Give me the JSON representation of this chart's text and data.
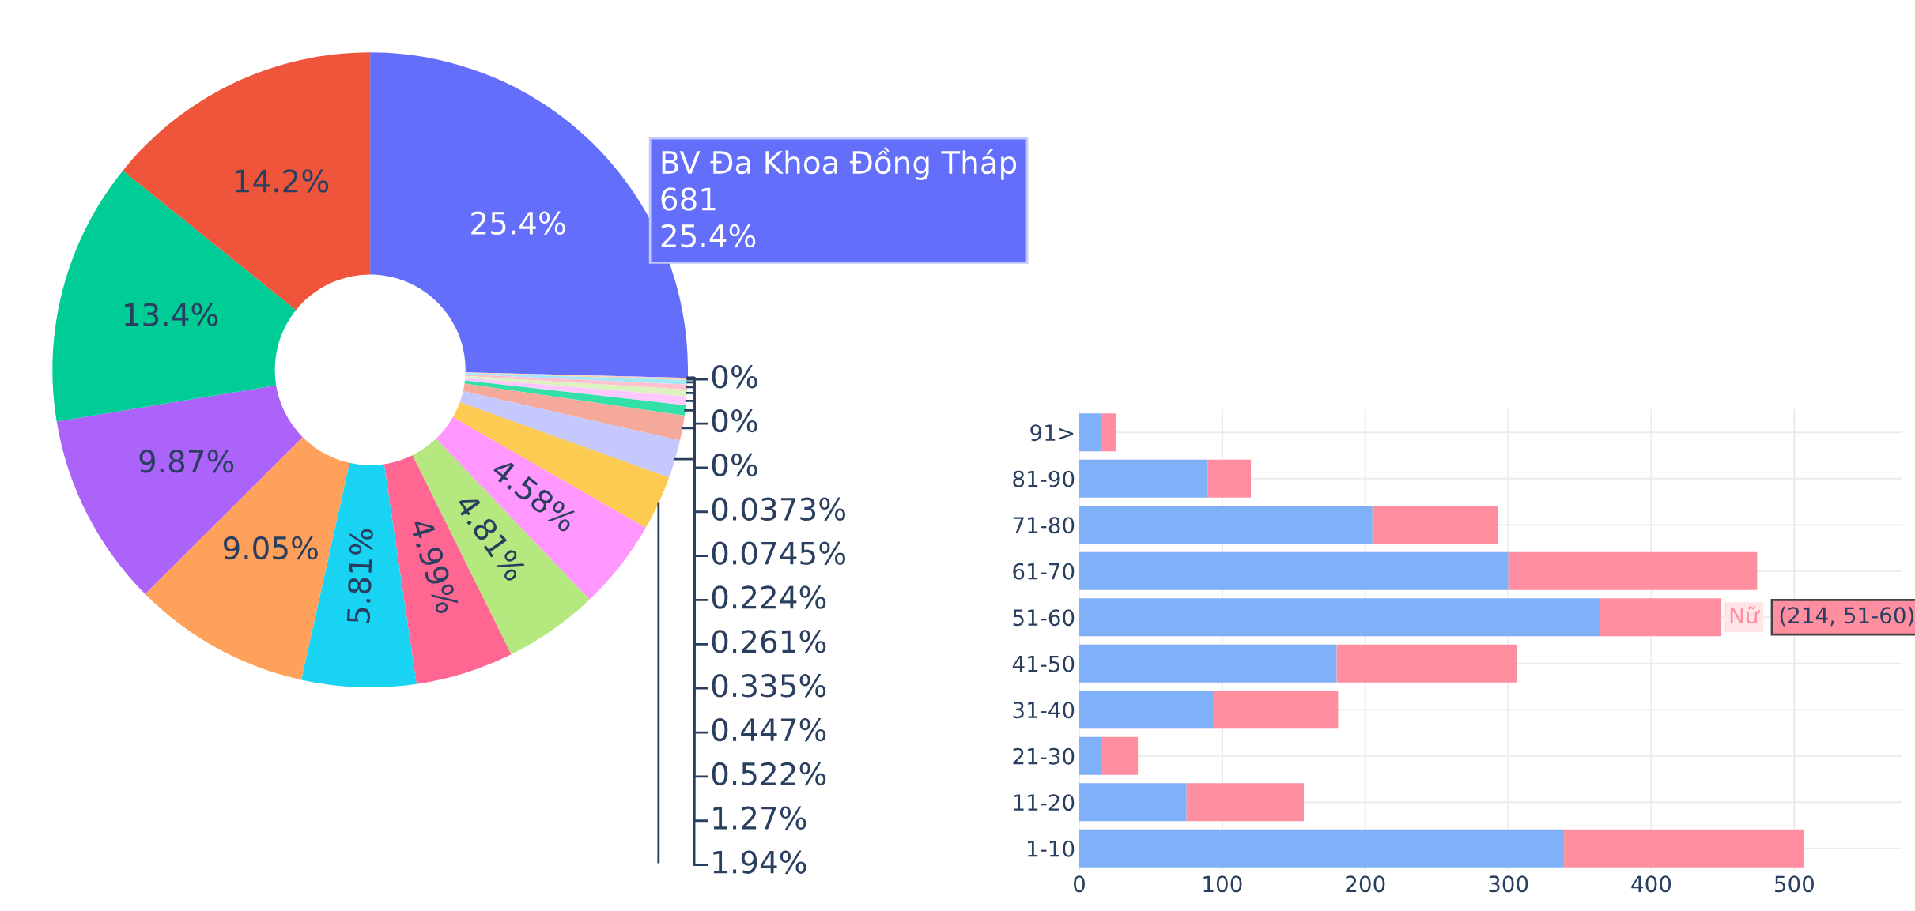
{
  "chart_data": [
    {
      "type": "donut",
      "categories": [
        "BV Đa Khoa Đồng Tháp",
        null,
        null,
        null,
        null,
        null,
        null,
        null,
        null,
        null,
        null,
        null,
        null,
        null,
        null,
        null,
        null,
        null,
        null,
        null,
        null,
        null
      ],
      "values": [
        25.4,
        0,
        0,
        0,
        0.0373,
        0.0745,
        0.224,
        0.261,
        0.335,
        0.447,
        0.522,
        1.27,
        1.94,
        2.78,
        4.58,
        4.81,
        4.99,
        5.81,
        9.05,
        9.87,
        13.4,
        14.2
      ],
      "value_labels": [
        "25.4%",
        "0%",
        "0%",
        "0%",
        "0.0373%",
        "0.0745%",
        "0.224%",
        "0.261%",
        "0.335%",
        "0.447%",
        "0.522%",
        "1.27%",
        "1.94%",
        null,
        "4.58%",
        "4.81%",
        "4.99%",
        "5.81%",
        "9.05%",
        "9.87%",
        "13.4%",
        "14.2%"
      ],
      "colors": [
        "#636efa",
        "#ffd3e6",
        "#c6f3fb",
        "#fbd9b9",
        "#ddc1fc",
        "#fdd0a2",
        "#a3e8fb",
        "#ffc2d0",
        "#dcf3c0",
        "#ffc9ff",
        "#33e0a8",
        "#f5a99b",
        "#c5c8fc",
        "#fecb52",
        "#ff97ff",
        "#b6e880",
        "#ff6692",
        "#19d3f3",
        "#ffa15a",
        "#ab63fa",
        "#00cc96",
        "#ef553b"
      ],
      "annotations": [
        "681"
      ]
    },
    {
      "type": "bar",
      "orientation": "horizontal",
      "stacked": true,
      "categories": [
        "91>",
        "81-90",
        "71-80",
        "61-70",
        "51-60",
        "41-50",
        "31-40",
        "21-30",
        "11-20",
        "1-10"
      ],
      "series": [
        {
          "color": "#80b1f8",
          "values": [
            15,
            90,
            205,
            300,
            364,
            180,
            94,
            15,
            75,
            339
          ]
        },
        {
          "name": "Nữ",
          "color": "#ff8fa0",
          "values": [
            11,
            30,
            88,
            174,
            85,
            126,
            87,
            26,
            82,
            168
          ]
        }
      ],
      "xlim": [
        0,
        575
      ],
      "xticks": [
        0,
        100,
        200,
        300,
        400,
        500
      ],
      "grid": true,
      "annotations": [
        "(214, 51-60)"
      ]
    }
  ]
}
